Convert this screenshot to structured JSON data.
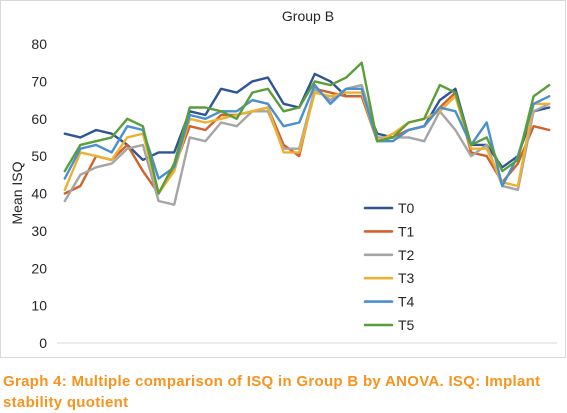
{
  "caption_lines": [
    "Graph 4: Multiple comparison of ISQ in Group B by ANOVA. ISQ: Implant",
    "stability quotient"
  ],
  "caption_color": "#f7931e",
  "chart_data": {
    "type": "line",
    "title": "Group B",
    "xlabel": "",
    "ylabel": "Mean ISQ",
    "ylim": [
      0,
      80
    ],
    "yticks": [
      0,
      10,
      20,
      30,
      40,
      50,
      60,
      70,
      80
    ],
    "grid": false,
    "legend_position": "inside-bottom-center",
    "series": [
      {
        "name": "T0",
        "color": "#2f5597",
        "values": [
          56,
          55,
          57,
          56,
          53,
          49,
          51,
          51,
          62,
          61,
          68,
          67,
          70,
          71,
          64,
          63,
          72,
          70,
          66,
          66,
          56,
          55,
          57,
          58,
          65,
          68,
          53,
          53,
          47,
          50,
          62,
          63
        ]
      },
      {
        "name": "T1",
        "color": "#d2612b",
        "values": [
          40,
          42,
          50,
          49,
          53,
          46,
          40,
          47,
          58,
          57,
          61,
          61,
          62,
          63,
          53,
          50,
          68,
          67,
          66,
          66,
          54,
          55,
          57,
          58,
          63,
          67,
          51,
          50,
          43,
          48,
          58,
          57
        ]
      },
      {
        "name": "T2",
        "color": "#a5a5a5",
        "values": [
          38,
          45,
          47,
          48,
          52,
          53,
          38,
          37,
          55,
          54,
          59,
          58,
          62,
          62,
          52,
          52,
          68,
          65,
          68,
          69,
          55,
          55,
          55,
          54,
          62,
          57,
          50,
          53,
          42,
          41,
          62,
          64
        ]
      },
      {
        "name": "T3",
        "color": "#edb12f",
        "values": [
          41,
          51,
          50,
          49,
          55,
          56,
          40,
          46,
          60,
          59,
          60,
          61,
          62,
          63,
          51,
          51,
          67,
          66,
          67,
          67,
          54,
          56,
          59,
          60,
          62,
          66,
          52,
          52,
          43,
          42,
          64,
          64
        ]
      },
      {
        "name": "T4",
        "color": "#4a8fce",
        "values": [
          44,
          52,
          53,
          51,
          58,
          57,
          44,
          47,
          61,
          60,
          62,
          62,
          65,
          64,
          58,
          59,
          69,
          64,
          68,
          68,
          54,
          54,
          57,
          58,
          63,
          62,
          53,
          59,
          42,
          50,
          64,
          66
        ]
      },
      {
        "name": "T5",
        "color": "#5a9e3a",
        "values": [
          46,
          53,
          54,
          55,
          60,
          58,
          40,
          48,
          63,
          63,
          62,
          60,
          67,
          68,
          62,
          63,
          70,
          69,
          71,
          75,
          54,
          55,
          59,
          60,
          69,
          67,
          53,
          55,
          46,
          49,
          66,
          69
        ]
      }
    ]
  }
}
